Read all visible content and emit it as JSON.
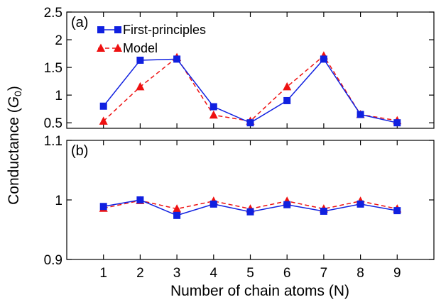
{
  "chart_data": {
    "type": "line",
    "ylabel": "Conductance (G0)",
    "ylabel_parts": {
      "main": "Conductance (",
      "symbol": "G",
      "subscript": "0",
      "close": ")"
    },
    "xlabel": "Number of chain atoms (N)",
    "x": [
      1,
      2,
      3,
      4,
      5,
      6,
      7,
      8,
      9
    ],
    "xlim": [
      0,
      10
    ],
    "xticks": [
      "1",
      "2",
      "3",
      "4",
      "5",
      "6",
      "7",
      "8",
      "9"
    ],
    "panels": [
      {
        "tag": "(a)",
        "ylim": [
          0.4,
          2.5
        ],
        "yticks": [
          0.5,
          1,
          1.5,
          2,
          2.5
        ],
        "ytick_labels": [
          "0.5",
          "1",
          "1.5",
          "2",
          "2.5"
        ],
        "legend": {
          "position": "top-left"
        },
        "series": [
          {
            "name": "First-principles",
            "style": "solid",
            "marker": "square",
            "color": "#1020e0",
            "values": [
              0.8,
              1.63,
              1.65,
              0.79,
              0.5,
              0.9,
              1.65,
              0.65,
              0.5
            ]
          },
          {
            "name": "Model",
            "style": "dashed",
            "marker": "triangle",
            "color": "#ee1111",
            "values": [
              0.53,
              1.15,
              1.68,
              0.64,
              0.53,
              1.15,
              1.71,
              0.65,
              0.54
            ]
          }
        ]
      },
      {
        "tag": "(b)",
        "ylim": [
          0.9,
          1.1
        ],
        "yticks": [
          0.9,
          1.0,
          1.1
        ],
        "ytick_labels": [
          "0.9",
          "1",
          "1.1"
        ],
        "series": [
          {
            "name": "First-principles",
            "style": "solid",
            "marker": "square",
            "color": "#1020e0",
            "values": [
              0.989,
              1.0,
              0.974,
              0.993,
              0.98,
              0.992,
              0.981,
              0.993,
              0.982
            ]
          },
          {
            "name": "Model",
            "style": "dashed",
            "marker": "triangle",
            "color": "#ee1111",
            "values": [
              0.986,
              0.999,
              0.985,
              0.998,
              0.985,
              0.998,
              0.985,
              0.998,
              0.985
            ]
          }
        ]
      }
    ]
  }
}
